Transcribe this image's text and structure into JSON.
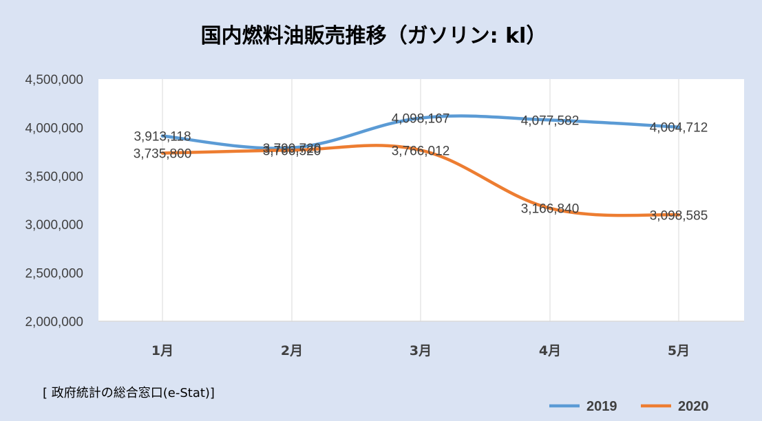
{
  "source_note": "[ 政府統計の総合窓口(e-Stat)]",
  "chart_data": {
    "type": "line",
    "title": "国内燃料油販売推移（ガソリン: kl）",
    "xlabel": "",
    "ylabel": "",
    "categories": [
      "1月",
      "2月",
      "3月",
      "4月",
      "5月"
    ],
    "ylim": [
      2000000,
      4500000
    ],
    "y_ticks": [
      "2,000,000",
      "2,500,000",
      "3,000,000",
      "3,500,000",
      "4,000,000",
      "4,500,000"
    ],
    "grid": "vertical",
    "legend_position": "bottom-right",
    "series": [
      {
        "name": "2019",
        "color": "#5b9bd5",
        "values": [
          3913118,
          3790720,
          4098167,
          4077582,
          4004712
        ],
        "labels": [
          "3,913,118",
          "3,790,720",
          "4,098,167",
          "4,077,582",
          "4,004,712"
        ]
      },
      {
        "name": "2020",
        "color": "#ed7d31",
        "values": [
          3735800,
          3766520,
          3766012,
          3166840,
          3098585
        ],
        "labels": [
          "3,735,800",
          "3,766,520",
          "3,766,012",
          "3,166,840",
          "3,098,585"
        ]
      }
    ]
  }
}
